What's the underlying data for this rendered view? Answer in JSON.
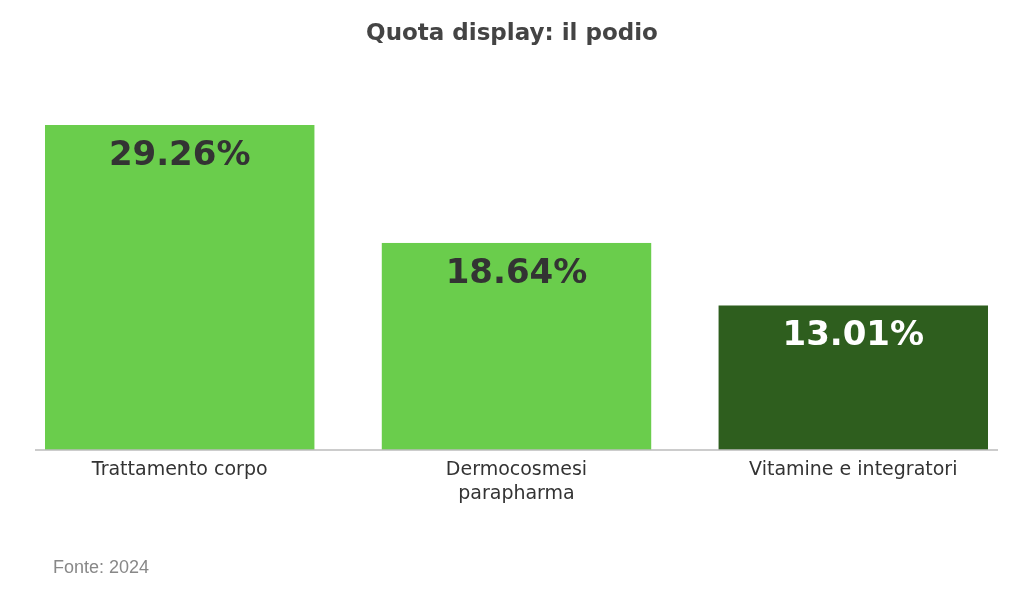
{
  "chart_data": {
    "type": "bar",
    "title": "Quota display: il podio",
    "categories": [
      "Trattamento corpo",
      "Dermocosmesi parapharma",
      "Vitamine e integratori"
    ],
    "values": [
      29.26,
      18.64,
      13.01
    ],
    "value_labels": [
      "29.26%",
      "18.64%",
      "13.01%"
    ],
    "colors": [
      "#6acd4c",
      "#6acd4c",
      "#2e5e1e"
    ],
    "annotations": [
      "Fonte: 2024"
    ]
  }
}
